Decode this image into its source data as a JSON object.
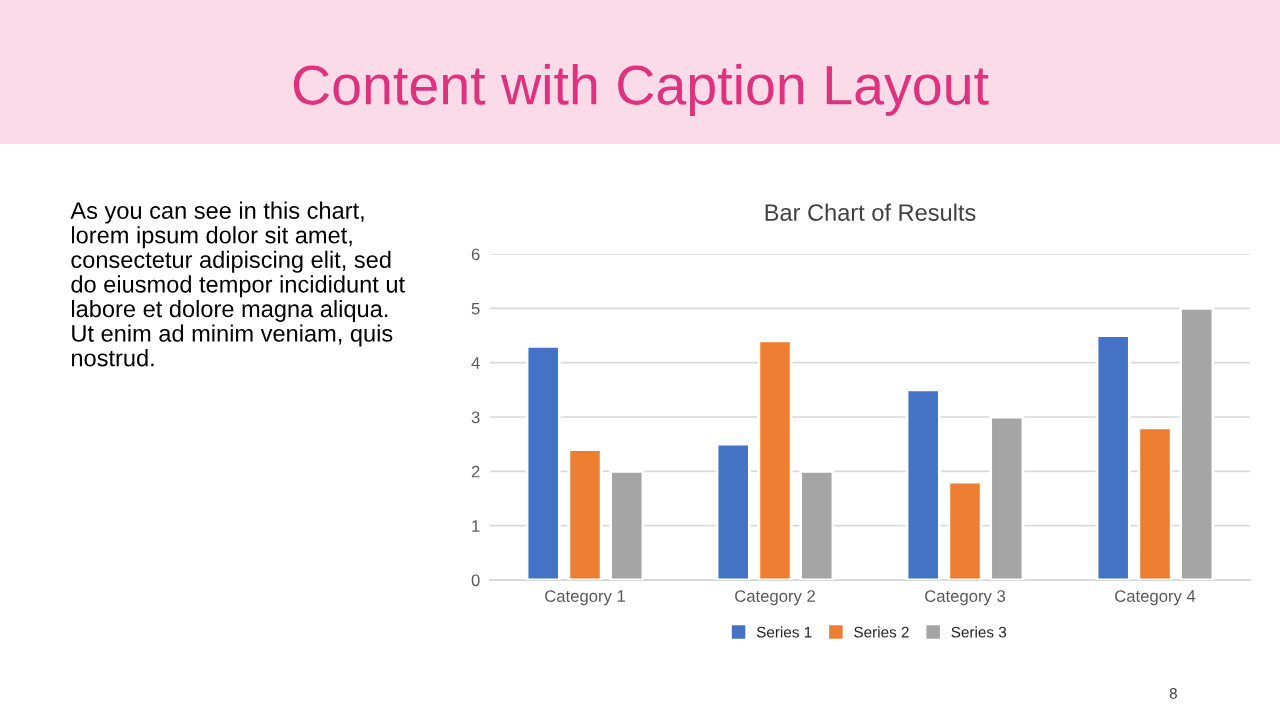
{
  "chart_data": {
    "type": "bar",
    "title": "Bar Chart of Results",
    "categories": [
      "Category 1",
      "Category 2",
      "Category 3",
      "Category 4"
    ],
    "series": [
      {
        "name": "Series 1",
        "color": "#4472c4",
        "values": [
          4.3,
          2.5,
          3.5,
          4.5
        ]
      },
      {
        "name": "Series 2",
        "color": "#ed7d31",
        "values": [
          2.4,
          4.4,
          1.8,
          2.8
        ]
      },
      {
        "name": "Series 3",
        "color": "#a5a5a5",
        "values": [
          2,
          2,
          3,
          5
        ]
      }
    ],
    "ylim": [
      0,
      6
    ],
    "yticks": [
      0,
      1,
      2,
      3,
      4,
      5,
      6
    ],
    "grid": "y",
    "legend": "bottom",
    "annotations": [
      "Content with Caption Layout",
      "As you can see in this chart,\nlorem ipsum dolor sit amet,\nconsectetur adipiscing elit, sed\ndo eiusmod tempor incididunt ut\nlabore et dolore magna aliqua.\nUt enim ad minim veniam, quis\nnostrud.",
      "8"
    ]
  }
}
